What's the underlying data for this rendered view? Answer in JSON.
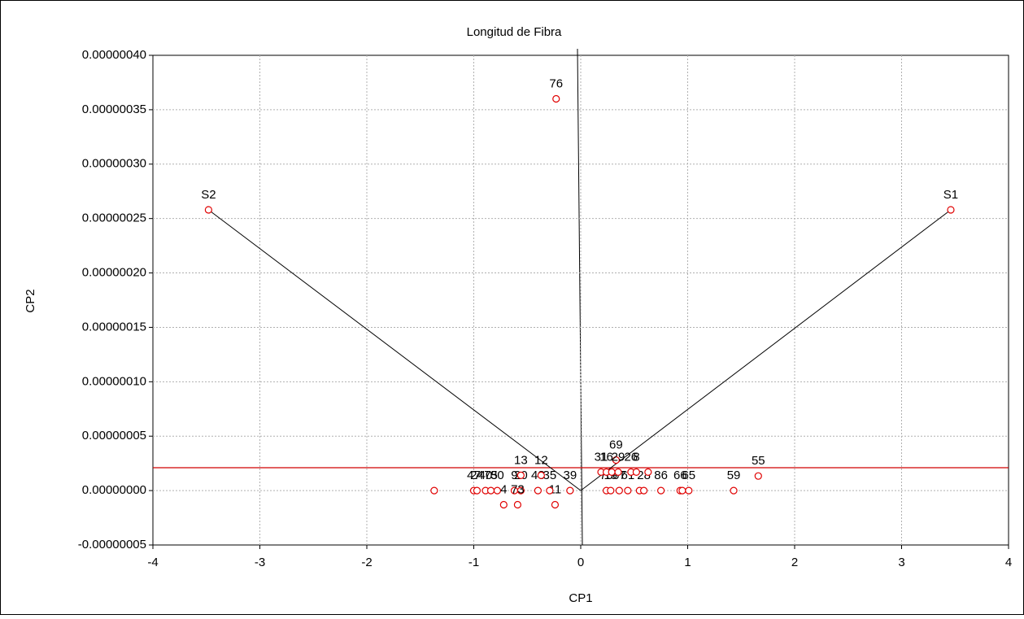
{
  "chart_data": {
    "type": "scatter",
    "title": "Longitud de Fibra",
    "x_label": "CP1",
    "y_label": "CP2",
    "xlim": [
      -4,
      4
    ],
    "xticks": [
      -4,
      -3,
      -2,
      -1,
      0,
      1,
      2,
      3,
      4
    ],
    "ylim": [
      -5e-08,
      4e-07
    ],
    "yticks": [
      {
        "value": -5e-08,
        "label": "-0.00000005"
      },
      {
        "value": 0,
        "label": "0.00000000"
      },
      {
        "value": 5e-08,
        "label": "0.00000005"
      },
      {
        "value": 1e-07,
        "label": "0.00000010"
      },
      {
        "value": 1.5e-07,
        "label": "0.00000015"
      },
      {
        "value": 2e-07,
        "label": "0.00000020"
      },
      {
        "value": 2.5e-07,
        "label": "0.00000025"
      },
      {
        "value": 3e-07,
        "label": "0.00000030"
      },
      {
        "value": 3.5e-07,
        "label": "0.00000035"
      },
      {
        "value": 4e-07,
        "label": "0.00000040"
      }
    ],
    "grid": true,
    "color": "#e00000",
    "reference_line": {
      "y": 2.1e-08,
      "color": "#d00000"
    },
    "vectors": [
      "S1",
      "S2"
    ],
    "x": [
      -0.23,
      -3.48,
      3.46,
      1.66,
      1.43,
      0.33,
      -0.24,
      -1.37,
      -1.0,
      -0.97,
      -0.89,
      -0.84,
      -0.78,
      -0.62,
      -0.56,
      -0.4,
      -0.29,
      -0.1,
      0.24,
      0.28,
      0.36,
      0.44,
      0.55,
      0.59,
      0.75,
      0.93,
      0.95,
      1.01,
      0.19,
      0.24,
      0.29,
      0.35,
      0.47,
      0.52,
      0.63,
      -0.56,
      -0.37,
      -0.72,
      -0.59
    ],
    "y": [
      3.6e-07,
      2.58e-07,
      2.58e-07,
      1.34e-08,
      0,
      2.8e-08,
      -1.3e-08,
      0,
      0,
      0,
      0,
      0,
      0,
      0,
      0,
      0,
      0,
      0,
      0,
      0,
      0,
      0,
      0,
      0,
      0,
      0,
      0,
      0,
      1.7e-08,
      1.7e-08,
      1.7e-08,
      1.7e-08,
      1.7e-08,
      1.7e-08,
      1.7e-08,
      1.4e-08,
      1.4e-08,
      -1.3e-08,
      -1.3e-08
    ],
    "labels": [
      "76",
      "S2",
      "S1",
      "55",
      "59",
      "69",
      "11",
      null,
      "47",
      "24",
      "40",
      "75",
      "30",
      "9",
      "20",
      "43",
      "35",
      "39",
      "70",
      "19",
      "67",
      "61",
      null,
      "28",
      "86",
      "66",
      null,
      "65",
      "31",
      "16",
      null,
      "29",
      "26",
      "8",
      null,
      "13",
      "12",
      "4",
      "73"
    ]
  }
}
